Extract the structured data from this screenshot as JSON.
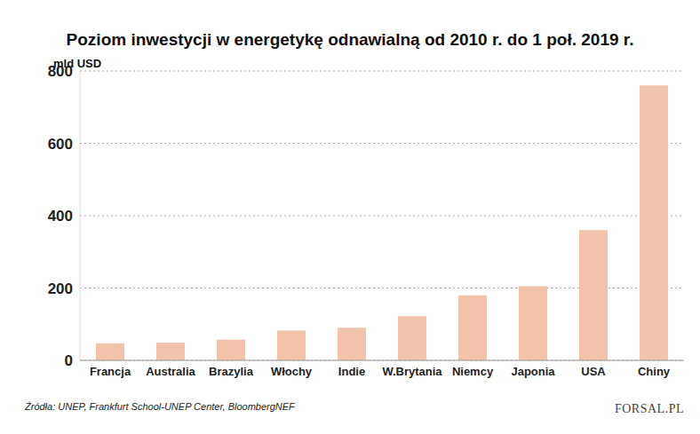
{
  "chart_data": {
    "type": "bar",
    "title": "Poziom inwestycji w energetykę odnawialną od 2010 r. do 1 poł. 2019 r.",
    "y_label": "mld USD",
    "source": "Źródła: UNEP, Frankfurt School-UNEP Center, BloombergNEF",
    "logo": "FORSAL.PL",
    "categories": [
      "Francja",
      "Australia",
      "Brazylia",
      "Włochy",
      "Indie",
      "W.Brytania",
      "Niemcy",
      "Japonia",
      "USA",
      "Chiny"
    ],
    "values": [
      47,
      49,
      57,
      82,
      90,
      122,
      180,
      205,
      360,
      760
    ],
    "color": "#f2c3ab",
    "ylim": [
      0,
      800
    ],
    "yticks": [
      0,
      200,
      400,
      600,
      800
    ],
    "grid": true
  }
}
